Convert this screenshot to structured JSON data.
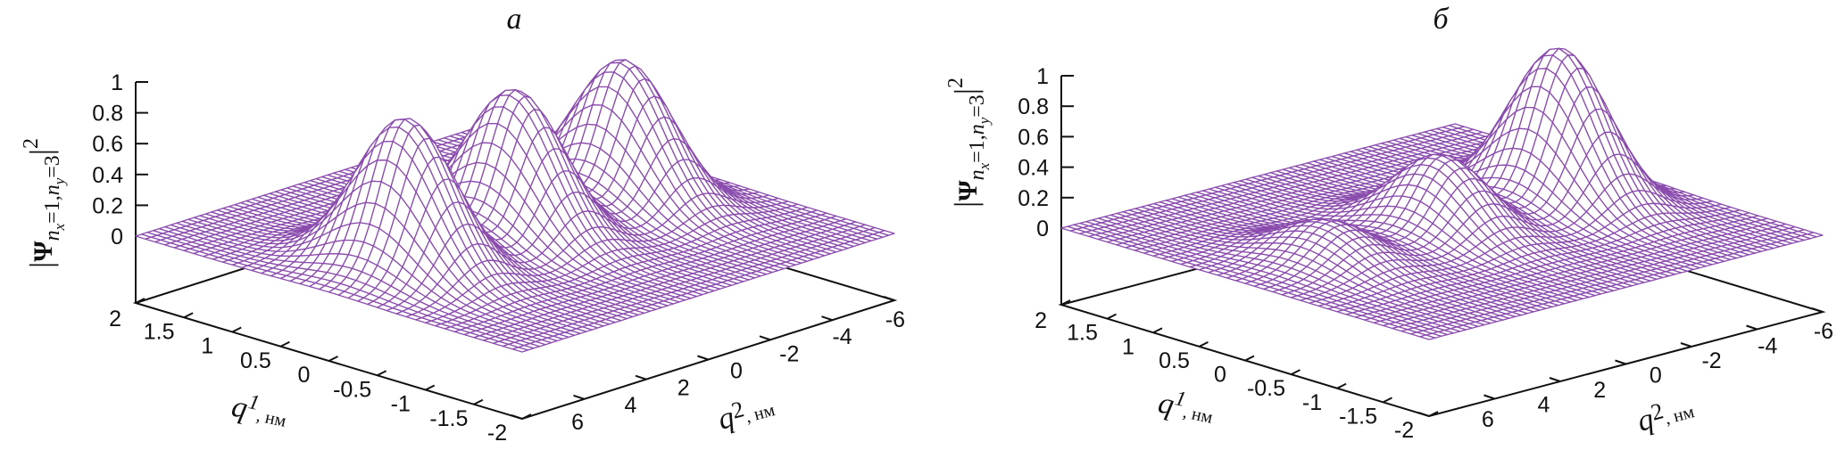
{
  "colors": {
    "surface": "#8a4cad",
    "axis": "#111111",
    "fill": "#ffffff"
  },
  "chart_data": [
    {
      "type": "surface",
      "title": "а",
      "zlabel": {
        "bar_left": "|",
        "symbol": "Ψ",
        "s1": "n",
        "s1sub": "x",
        "s2": "=1,",
        "s3": "n",
        "s3sub": "y",
        "s4": "=3",
        "bar_right": "|",
        "power": "2"
      },
      "xlabel": {
        "var": "q",
        "index": "1",
        "unit": ", нм"
      },
      "ylabel": {
        "var": "q",
        "index": "2",
        "unit": ", нм"
      },
      "q1_range": [
        -2,
        2
      ],
      "q2_range": [
        -6,
        6
      ],
      "z_range": [
        0,
        1
      ],
      "z_ticks": [
        "0",
        "0.2",
        "0.4",
        "0.6",
        "0.8",
        "1"
      ],
      "q1_ticks": [
        "2",
        "1.5",
        "1",
        "0.5",
        "0",
        "-0.5",
        "-1",
        "-1.5",
        "-2"
      ],
      "q2_ticks": [
        "6",
        "4",
        "2",
        "0",
        "-2",
        "-4",
        "-6"
      ],
      "peaks": [
        {
          "q1": 0,
          "q2": 3.5,
          "height": 0.98,
          "sigma_q1": 0.45,
          "sigma_q2": 0.85
        },
        {
          "q1": 0,
          "q2": 0,
          "height": 0.94,
          "sigma_q1": 0.45,
          "sigma_q2": 0.85
        },
        {
          "q1": 0,
          "q2": -3.5,
          "height": 0.91,
          "sigma_q1": 0.45,
          "sigma_q2": 0.85
        }
      ]
    },
    {
      "type": "surface",
      "title": "б",
      "zlabel": {
        "bar_left": "|",
        "symbol": "Ψ",
        "s1": "n",
        "s1sub": "x",
        "s2": "=1,",
        "s3": "n",
        "s3sub": "y",
        "s4": "=3",
        "bar_right": "|",
        "power": "2"
      },
      "xlabel": {
        "var": "q",
        "index": "1",
        "unit": ", нм"
      },
      "ylabel": {
        "var": "q",
        "index": "2",
        "unit": ", нм"
      },
      "q1_range": [
        -2,
        2
      ],
      "q2_range": [
        -6,
        6
      ],
      "z_range": [
        0,
        1
      ],
      "z_ticks": [
        "0",
        "0.2",
        "0.4",
        "0.6",
        "0.8",
        "1"
      ],
      "q1_ticks": [
        "2",
        "1.5",
        "1",
        "0.5",
        "0",
        "-0.5",
        "-1",
        "-1.5",
        "-2"
      ],
      "q2_ticks": [
        "6",
        "4",
        "2",
        "0",
        "-2",
        "-4",
        "-6"
      ],
      "peaks": [
        {
          "q1": 0,
          "q2": 3.4,
          "height": 0.26,
          "sigma_q1": 0.45,
          "sigma_q2": 0.85
        },
        {
          "q1": 0,
          "q2": 0,
          "height": 0.5,
          "sigma_q1": 0.45,
          "sigma_q2": 0.85
        },
        {
          "q1": 0,
          "q2": -3.6,
          "height": 1.0,
          "sigma_q1": 0.45,
          "sigma_q2": 0.85
        }
      ]
    }
  ]
}
